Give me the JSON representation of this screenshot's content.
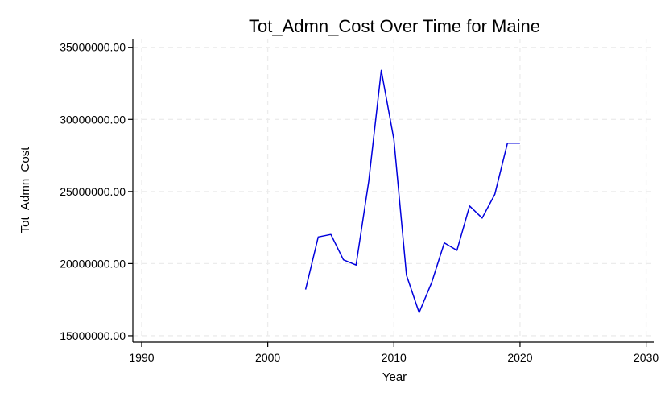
{
  "chart_data": {
    "type": "line",
    "title": "Tot_Admn_Cost Over Time for Maine",
    "xlabel": "Year",
    "ylabel": "Tot_Admn_Cost",
    "xlim": [
      1989.3,
      2030.6
    ],
    "ylim": [
      14550000,
      35600000
    ],
    "x_ticks": [
      1990,
      2000,
      2010,
      2020,
      2030
    ],
    "x_tick_labels": [
      "1990",
      "2000",
      "2010",
      "2020",
      "2030"
    ],
    "y_ticks": [
      15000000,
      20000000,
      25000000,
      30000000,
      35000000
    ],
    "y_tick_labels": [
      "15000000.00",
      "20000000.00",
      "25000000.00",
      "30000000.00",
      "35000000.00"
    ],
    "grid": true,
    "series": [
      {
        "color": "#0000dd",
        "x": [
          2003,
          2004,
          2005,
          2006,
          2007,
          2008,
          2009,
          2010,
          2011,
          2012,
          2013,
          2014,
          2015,
          2016,
          2017,
          2018,
          2019,
          2020
        ],
        "y": [
          18200000,
          21850000,
          22020000,
          20260000,
          19900000,
          25700000,
          33400000,
          28600000,
          19200000,
          16600000,
          18700000,
          21440000,
          20920000,
          24000000,
          23160000,
          24800000,
          28350000,
          28350000
        ]
      }
    ]
  }
}
